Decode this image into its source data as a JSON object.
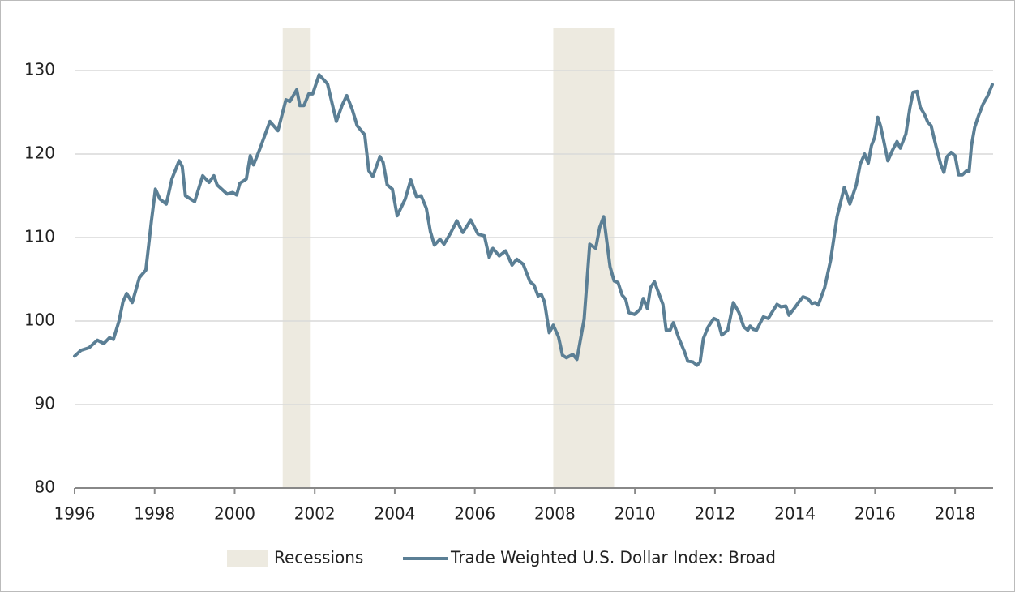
{
  "chart_data": {
    "type": "line",
    "x": [
      1996.0,
      1996.16,
      1996.36,
      1996.57,
      1996.73,
      1996.87,
      1996.97,
      1997.11,
      1997.21,
      1997.3,
      1997.44,
      1997.62,
      1997.78,
      1997.92,
      1998.02,
      1998.13,
      1998.29,
      1998.43,
      1998.61,
      1998.69,
      1998.77,
      1999.0,
      1999.2,
      1999.36,
      1999.48,
      1999.56,
      1999.81,
      1999.95,
      2000.05,
      2000.13,
      2000.29,
      2000.39,
      2000.47,
      2000.62,
      2000.88,
      2001.08,
      2001.28,
      2001.38,
      2001.55,
      2001.63,
      2001.73,
      2001.85,
      2001.95,
      2002.11,
      2002.32,
      2002.54,
      2002.68,
      2002.8,
      2002.94,
      2003.06,
      2003.25,
      2003.35,
      2003.45,
      2003.63,
      2003.71,
      2003.81,
      2003.94,
      2004.06,
      2004.26,
      2004.4,
      2004.54,
      2004.66,
      2004.79,
      2004.89,
      2004.99,
      2005.13,
      2005.23,
      2005.39,
      2005.55,
      2005.7,
      2005.9,
      2006.08,
      2006.24,
      2006.36,
      2006.45,
      2006.61,
      2006.77,
      2006.93,
      2007.05,
      2007.21,
      2007.38,
      2007.48,
      2007.58,
      2007.66,
      2007.74,
      2007.86,
      2007.96,
      2008.09,
      2008.19,
      2008.29,
      2008.45,
      2008.55,
      2008.73,
      2008.87,
      2009.02,
      2009.12,
      2009.22,
      2009.38,
      2009.48,
      2009.58,
      2009.68,
      2009.77,
      2009.85,
      2009.99,
      2010.13,
      2010.21,
      2010.31,
      2010.39,
      2010.49,
      2010.7,
      2010.78,
      2010.88,
      2010.96,
      2011.1,
      2011.24,
      2011.32,
      2011.45,
      2011.55,
      2011.63,
      2011.71,
      2011.83,
      2011.97,
      2012.07,
      2012.17,
      2012.32,
      2012.46,
      2012.6,
      2012.72,
      2012.82,
      2012.88,
      2012.96,
      2013.04,
      2013.21,
      2013.33,
      2013.55,
      2013.65,
      2013.77,
      2013.85,
      2013.98,
      2014.1,
      2014.2,
      2014.32,
      2014.42,
      2014.5,
      2014.58,
      2014.74,
      2014.89,
      2015.05,
      2015.23,
      2015.37,
      2015.53,
      2015.63,
      2015.74,
      2015.83,
      2015.91,
      2015.99,
      2016.07,
      2016.14,
      2016.32,
      2016.43,
      2016.55,
      2016.63,
      2016.77,
      2016.87,
      2016.95,
      2017.05,
      2017.13,
      2017.23,
      2017.32,
      2017.4,
      2017.52,
      2017.64,
      2017.72,
      2017.8,
      2017.9,
      2018.0,
      2018.09,
      2018.18,
      2018.29,
      2018.35,
      2018.41,
      2018.49,
      2018.58,
      2018.7,
      2018.81,
      2018.93
    ],
    "series": [
      {
        "name": "Trade Weighted U.S. Dollar Index: Broad",
        "color": "#5b7f95",
        "values": [
          95.8,
          96.5,
          96.8,
          97.7,
          97.3,
          98.0,
          97.8,
          100.0,
          102.3,
          103.3,
          102.2,
          105.2,
          106.1,
          112.0,
          115.8,
          114.6,
          114.0,
          117.0,
          119.2,
          118.5,
          115.0,
          114.3,
          117.4,
          116.6,
          117.4,
          116.3,
          115.2,
          115.4,
          115.1,
          116.5,
          117.0,
          119.8,
          118.7,
          120.5,
          123.9,
          122.8,
          126.5,
          126.3,
          127.7,
          125.8,
          125.8,
          127.2,
          127.2,
          129.5,
          128.4,
          123.9,
          125.8,
          127.0,
          125.3,
          123.4,
          122.3,
          118.0,
          117.3,
          119.7,
          119.0,
          116.3,
          115.8,
          112.6,
          114.6,
          116.9,
          114.9,
          115.0,
          113.5,
          110.7,
          109.1,
          109.8,
          109.2,
          110.5,
          112.0,
          110.6,
          112.1,
          110.4,
          110.2,
          107.6,
          108.7,
          107.8,
          108.4,
          106.7,
          107.4,
          106.8,
          104.7,
          104.3,
          103.0,
          103.2,
          102.3,
          98.6,
          99.5,
          98.1,
          95.9,
          95.6,
          96.0,
          95.4,
          100.2,
          109.2,
          108.7,
          111.2,
          112.5,
          106.5,
          104.8,
          104.6,
          103.1,
          102.6,
          101.0,
          100.8,
          101.4,
          102.7,
          101.5,
          104.0,
          104.7,
          102.0,
          98.9,
          98.9,
          99.8,
          97.9,
          96.3,
          95.2,
          95.1,
          94.7,
          95.1,
          97.9,
          99.3,
          100.3,
          100.1,
          98.3,
          98.9,
          102.2,
          101.0,
          99.3,
          98.9,
          99.4,
          99.0,
          98.9,
          100.5,
          100.3,
          102.0,
          101.7,
          101.8,
          100.7,
          101.5,
          102.3,
          102.9,
          102.7,
          102.1,
          102.2,
          101.9,
          104.0,
          107.3,
          112.5,
          116.0,
          114.0,
          116.3,
          118.8,
          120.0,
          118.9,
          121.0,
          122.0,
          124.4,
          123.3,
          119.2,
          120.4,
          121.5,
          120.7,
          122.4,
          125.5,
          127.4,
          127.5,
          125.6,
          124.8,
          123.8,
          123.4,
          121.0,
          118.8,
          117.8,
          119.7,
          120.2,
          119.8,
          117.5,
          117.5,
          118.0,
          117.9,
          121.0,
          123.2,
          124.5,
          126.0,
          126.9,
          128.3
        ]
      }
    ],
    "recessions": {
      "name": "Recessions",
      "color": "#edeae0",
      "periods": [
        [
          2001.2,
          2001.9
        ],
        [
          2007.96,
          2009.48
        ]
      ]
    },
    "xlim": [
      1996,
      2018.95
    ],
    "xticks": [
      1996,
      1998,
      2000,
      2002,
      2004,
      2006,
      2008,
      2010,
      2012,
      2014,
      2016,
      2018
    ],
    "ylim": [
      80,
      135.05
    ],
    "yticks": [
      80,
      90,
      100,
      110,
      120,
      130
    ],
    "grid": true
  }
}
